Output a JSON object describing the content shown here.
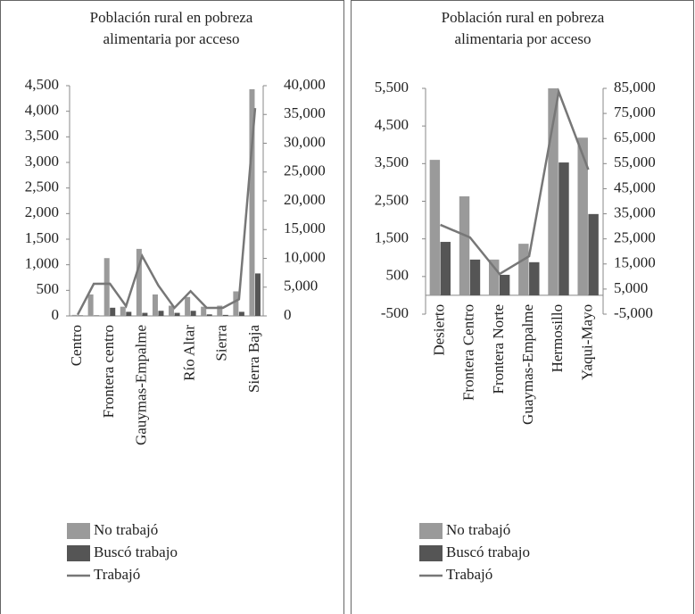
{
  "chart_data": [
    {
      "type": "bar-line",
      "title": "Población rural en pobreza alimentaria por acceso",
      "categories": [
        "Centro",
        null,
        "Frontera centro",
        null,
        "Gauymas-Empalme",
        null,
        null,
        "Río Altar",
        null,
        "Sierra",
        null,
        "Sierra Baja"
      ],
      "series": [
        {
          "name": "No trabajó",
          "color": "#9a9a9a",
          "kind": "bar",
          "values": [
            20,
            420,
            1130,
            180,
            1310,
            420,
            200,
            370,
            180,
            200,
            480,
            4430
          ]
        },
        {
          "name": "Buscó trabajo",
          "color": "#555555",
          "kind": "bar",
          "values": [
            10,
            10,
            160,
            80,
            60,
            100,
            60,
            100,
            30,
            20,
            80,
            830
          ]
        },
        {
          "name": "Trabajó",
          "color": "#777777",
          "kind": "line",
          "axis": "y2",
          "values": [
            200,
            5580,
            5600,
            1700,
            10400,
            5300,
            1400,
            4300,
            1400,
            1400,
            2900,
            36100
          ]
        }
      ],
      "ylim": [
        0,
        4500
      ],
      "yticks": [
        0,
        500,
        {
          "value": 1000,
          "label": "1,000"
        },
        {
          "value": 1500,
          "label": "1,500"
        },
        {
          "value": 2000,
          "label": "2,000"
        },
        {
          "value": 2500,
          "label": "2,500"
        },
        {
          "value": 3000,
          "label": "3,000"
        },
        {
          "value": 3500,
          "label": "3,500"
        },
        {
          "value": 4000,
          "label": "4,000"
        },
        {
          "value": 4500,
          "label": "4,500"
        }
      ],
      "y2lim": [
        0,
        40000
      ],
      "y2ticks": [
        0,
        {
          "value": 5000,
          "label": "5,000"
        },
        {
          "value": 10000,
          "label": "10,000"
        },
        {
          "value": 15000,
          "label": "15,000"
        },
        {
          "value": 20000,
          "label": "20,000"
        },
        {
          "value": 25000,
          "label": "25,000"
        },
        {
          "value": 30000,
          "label": "30,000"
        },
        {
          "value": 35000,
          "label": "35,000"
        },
        {
          "value": 40000,
          "label": "40,000"
        }
      ]
    },
    {
      "type": "bar-line",
      "title": "Población rural en pobreza alimentaria por acceso",
      "categories": [
        "Desierto",
        "Frontera Centro",
        "Frontera Norte",
        "Guaymas-Empalme",
        "Hermosillo",
        "Yaqui-Mayo"
      ],
      "series": [
        {
          "name": "No trabajó",
          "color": "#9a9a9a",
          "kind": "bar",
          "values": [
            3600,
            2630,
            950,
            1370,
            5500,
            4190
          ]
        },
        {
          "name": "Buscó trabajo",
          "color": "#555555",
          "kind": "bar",
          "values": [
            1420,
            950,
            545,
            880,
            3530,
            2160
          ]
        },
        {
          "name": "Trabajó",
          "color": "#777777",
          "kind": "line",
          "axis": "y2",
          "values": [
            30600,
            25600,
            11000,
            18100,
            83600,
            52600
          ]
        }
      ],
      "ylim": [
        -500,
        5500
      ],
      "yticks": [
        -500,
        500,
        {
          "value": 1500,
          "label": "1,500"
        },
        {
          "value": 2500,
          "label": "2,500"
        },
        {
          "value": 3500,
          "label": "3,500"
        },
        {
          "value": 4500,
          "label": "4,500"
        },
        {
          "value": 5500,
          "label": "5,500"
        }
      ],
      "y2lim": [
        -5000,
        85000
      ],
      "y2ticks": [
        {
          "value": -5000,
          "label": "-5,000"
        },
        {
          "value": 5000,
          "label": "5,000"
        },
        {
          "value": 15000,
          "label": "15,000"
        },
        {
          "value": 25000,
          "label": "25,000"
        },
        {
          "value": 35000,
          "label": "35,000"
        },
        {
          "value": 45000,
          "label": "45,000"
        },
        {
          "value": 55000,
          "label": "55,000"
        },
        {
          "value": 65000,
          "label": "65,000"
        },
        {
          "value": 75000,
          "label": "75,000"
        },
        {
          "value": 85000,
          "label": "85,000"
        }
      ]
    }
  ]
}
